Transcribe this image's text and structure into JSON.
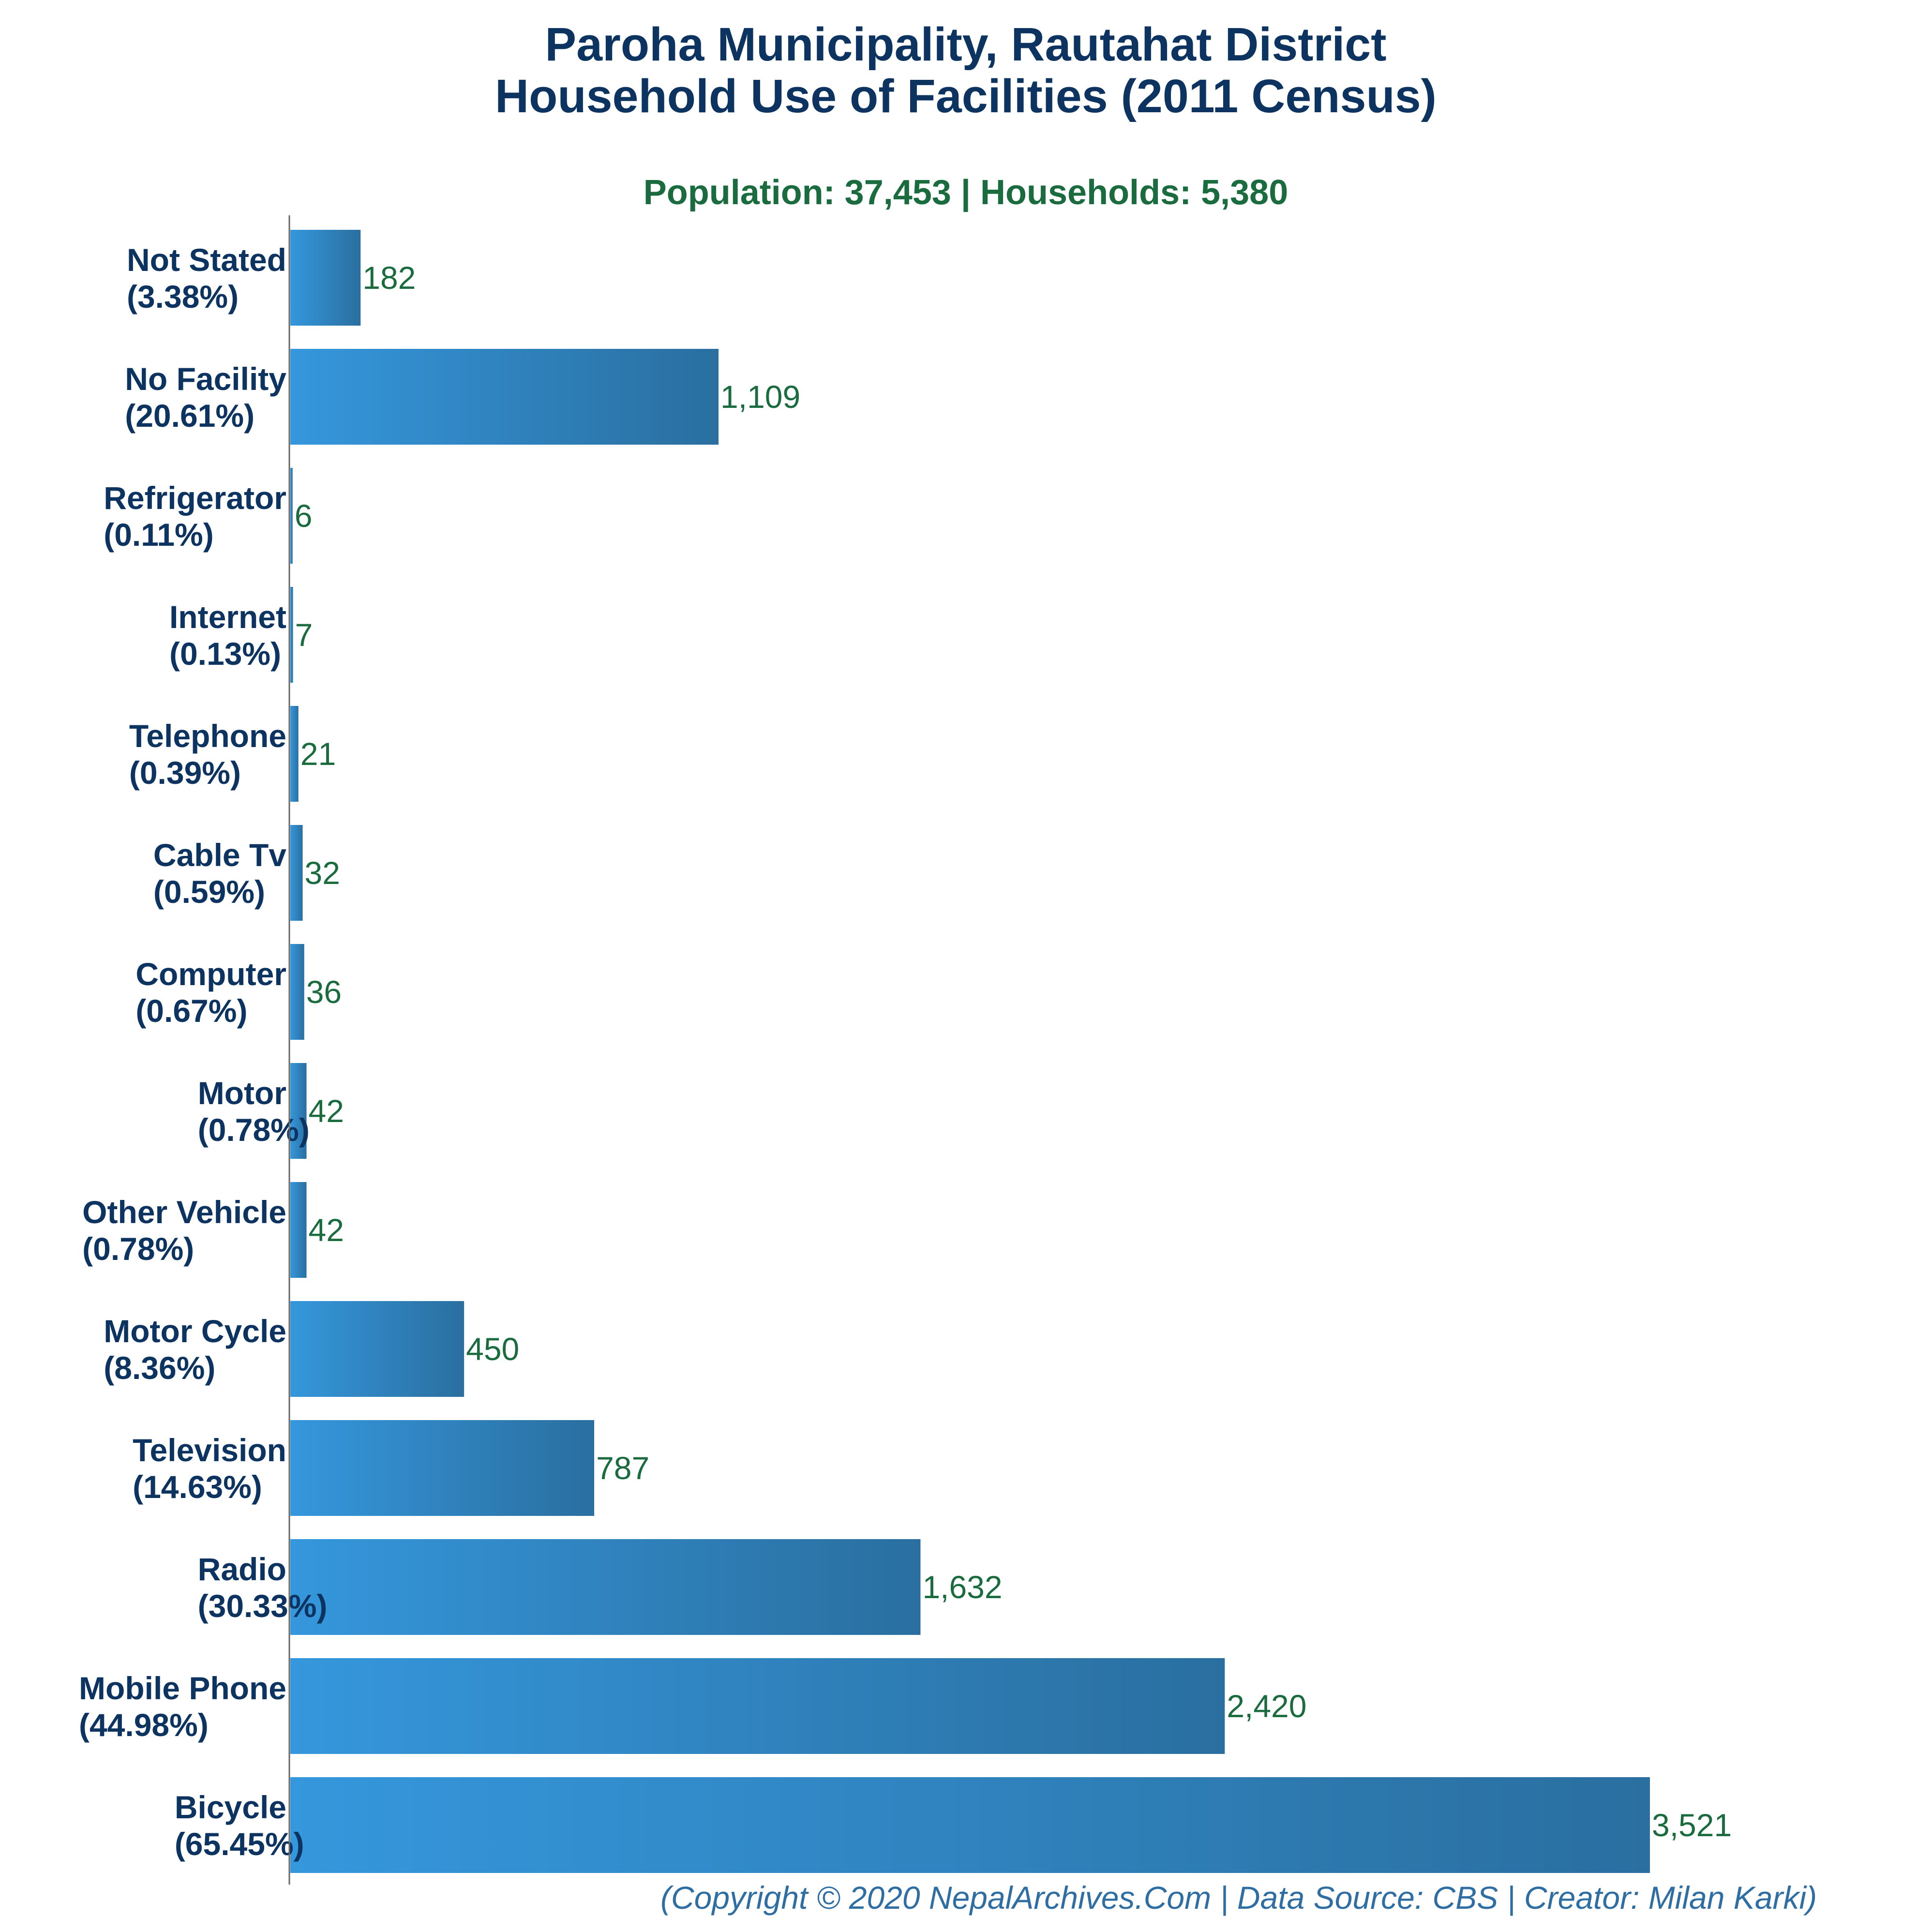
{
  "chart_data": {
    "type": "bar",
    "orientation": "horizontal",
    "title_lines": [
      "Paroha Municipality, Rautahat District",
      "Household Use of Facilities (2011 Census)"
    ],
    "subtitle": "Population: 37,453 | Households: 5,380",
    "categories": [
      {
        "name": "Not Stated",
        "pct": "(3.38%)"
      },
      {
        "name": "No Facility",
        "pct": "(20.61%)"
      },
      {
        "name": "Refrigerator",
        "pct": "(0.11%)"
      },
      {
        "name": "Internet",
        "pct": "(0.13%)"
      },
      {
        "name": "Telephone",
        "pct": "(0.39%)"
      },
      {
        "name": "Cable Tv",
        "pct": "(0.59%)"
      },
      {
        "name": "Computer",
        "pct": "(0.67%)"
      },
      {
        "name": "Motor",
        "pct": "(0.78%)"
      },
      {
        "name": "Other Vehicle",
        "pct": "(0.78%)"
      },
      {
        "name": "Motor Cycle",
        "pct": "(8.36%)"
      },
      {
        "name": "Television",
        "pct": "(14.63%)"
      },
      {
        "name": "Radio",
        "pct": "(30.33%)"
      },
      {
        "name": "Mobile Phone",
        "pct": "(44.98%)"
      },
      {
        "name": "Bicycle",
        "pct": "(65.45%)"
      }
    ],
    "values": [
      182,
      1109,
      6,
      7,
      21,
      32,
      36,
      42,
      42,
      450,
      787,
      1632,
      2420,
      3521
    ],
    "value_labels": [
      "182",
      "1,109",
      "6",
      "7",
      "21",
      "32",
      "36",
      "42",
      "42",
      "450",
      "787",
      "1,632",
      "2,420",
      "3,521"
    ],
    "xlim": [
      0,
      3521
    ],
    "grid": false,
    "legend": "none",
    "colors": {
      "bar_light": "#3597dc",
      "bar_dark": "#2a6fa0",
      "title": "#0d3461",
      "subtitle": "#1a6b3e",
      "value_label": "#1a6b3e",
      "footer": "#2e6ea3",
      "axis": "#666666"
    }
  },
  "footer": "(Copyright © 2020 NepalArchives.Com | Data Source: CBS | Creator: Milan Karki)"
}
